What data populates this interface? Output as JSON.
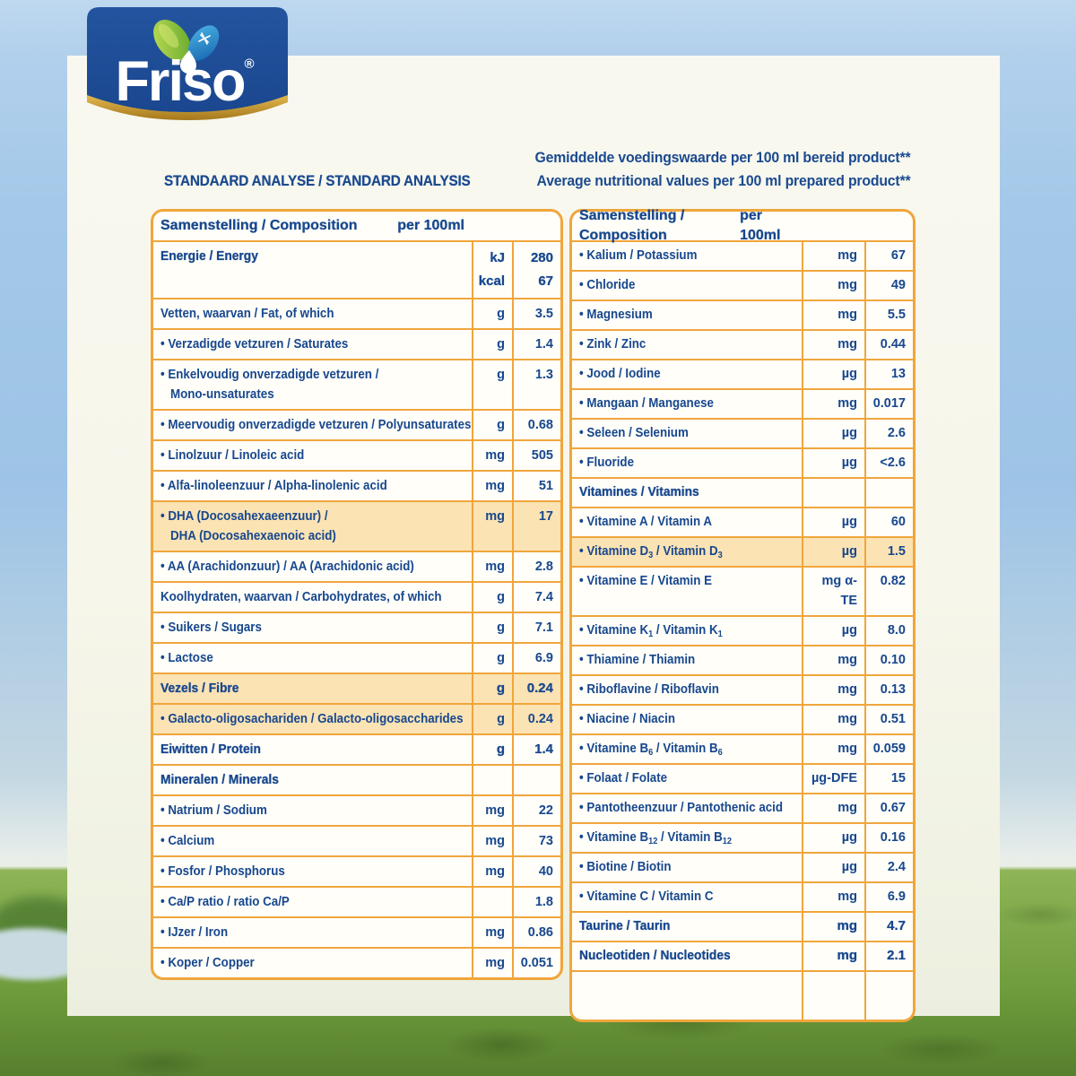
{
  "brand": {
    "name": "Friso",
    "registered": "®"
  },
  "icons": {
    "logo_mark": "leaf-drop-icon",
    "snowflake": "snowflake-icon",
    "milk_drop": "milk-drop-icon"
  },
  "colors": {
    "table_border": "#f0a63c",
    "row_highlight": "#fbe3b4",
    "text_navy": "#17478e",
    "logo_blue": "#1d4e9e",
    "logo_gold": "#c9992f",
    "sky": "#9dc3e6",
    "grass": "#6f9c3c"
  },
  "header": {
    "title": "STANDAARD ANALYSE / STANDARD ANALYSIS",
    "note_line1": "Gemiddelde voedingswaarde per 100 ml bereid product**",
    "note_line2": "Average nutritional values per 100 ml prepared product**"
  },
  "tables": [
    {
      "header": {
        "name": "Samenstelling / Composition",
        "per": "per 100ml"
      },
      "rows": [
        {
          "name": "Energie / Energy",
          "bold": true,
          "units": [
            "kJ",
            "kcal"
          ],
          "values": [
            "280",
            "67"
          ]
        },
        {
          "name": "**Vetten**, waarvan / **Fat**, of which",
          "unit": "g",
          "value": "3.5"
        },
        {
          "name": "• Verzadigde vetzuren / Saturates",
          "unit": "g",
          "value": "1.4"
        },
        {
          "name": "• Enkelvoudig onverzadigde vetzuren /",
          "name2": "Mono-unsaturates",
          "unit": "g",
          "value": "1.3"
        },
        {
          "name": "• Meervoudig onverzadigde vetzuren / Polyunsaturates",
          "unit": "g",
          "value": "0.68"
        },
        {
          "name": "• Linolzuur / Linoleic acid",
          "unit": "mg",
          "value": "505"
        },
        {
          "name": "• Alfa-linoleenzuur / Alpha-linolenic acid",
          "unit": "mg",
          "value": "51"
        },
        {
          "name": "• DHA (Docosahexaeenzuur) /",
          "name2": "DHA (Docosahexaenoic acid)",
          "unit": "mg",
          "value": "17",
          "hl": true
        },
        {
          "name": "• AA (Arachidonzuur) / AA (Arachidonic acid)",
          "unit": "mg",
          "value": "2.8"
        },
        {
          "name": "**Koolhydraten**, waarvan / **Carbohydrates**, of which",
          "unit": "g",
          "value": "7.4"
        },
        {
          "name": "• Suikers / Sugars",
          "unit": "g",
          "value": "7.1"
        },
        {
          "name": "• Lactose",
          "unit": "g",
          "value": "6.9"
        },
        {
          "name": "Vezels / Fibre",
          "bold": true,
          "hl": true,
          "unit": "g",
          "value": "0.24"
        },
        {
          "name": "• Galacto-oligosachariden / Galacto-oligosaccharides",
          "hl": true,
          "unit": "g",
          "value": "0.24"
        },
        {
          "name": "Eiwitten / Protein",
          "bold": true,
          "unit": "g",
          "value": "1.4"
        },
        {
          "name": "Mineralen / Minerals",
          "bold": true,
          "unit": "",
          "value": ""
        },
        {
          "name": "• Natrium / Sodium",
          "unit": "mg",
          "value": "22"
        },
        {
          "name": "• Calcium",
          "unit": "mg",
          "value": "73"
        },
        {
          "name": "• Fosfor / Phosphorus",
          "unit": "mg",
          "value": "40"
        },
        {
          "name": "• Ca/P ratio / ratio Ca/P",
          "unit": "",
          "value": "1.8"
        },
        {
          "name": "• IJzer / Iron",
          "unit": "mg",
          "value": "0.86"
        },
        {
          "name": "• Koper / Copper",
          "unit": "mg",
          "value": "0.051"
        }
      ]
    },
    {
      "header": {
        "name": "Samenstelling / Composition",
        "per": "per 100ml"
      },
      "rows": [
        {
          "name": "• Kalium / Potassium",
          "unit": "mg",
          "value": "67"
        },
        {
          "name": "• Chloride",
          "unit": "mg",
          "value": "49"
        },
        {
          "name": "• Magnesium",
          "unit": "mg",
          "value": "5.5"
        },
        {
          "name": "• Zink / Zinc",
          "unit": "mg",
          "value": "0.44"
        },
        {
          "name": "• Jood / Iodine",
          "unit": "µg",
          "value": "13"
        },
        {
          "name": "• Mangaan / Manganese",
          "unit": "mg",
          "value": "0.017"
        },
        {
          "name": "• Seleen / Selenium",
          "unit": "µg",
          "value": "2.6"
        },
        {
          "name": "• Fluoride",
          "unit": "µg",
          "value": "<2.6"
        },
        {
          "name": "Vitamines / Vitamins",
          "bold": true,
          "unit": "",
          "value": ""
        },
        {
          "name": "• Vitamine A / Vitamin A",
          "unit": "µg",
          "value": "60"
        },
        {
          "name": "• Vitamine D~3~ / Vitamin D~3~",
          "unit": "µg",
          "value": "1.5",
          "hl": true
        },
        {
          "name": "• Vitamine E / Vitamin E",
          "unit": "mg α-TE",
          "value": "0.82"
        },
        {
          "name": "• Vitamine K~1~ / Vitamin K~1~",
          "unit": "µg",
          "value": "8.0"
        },
        {
          "name": "• Thiamine / Thiamin",
          "unit": "mg",
          "value": "0.10"
        },
        {
          "name": "• Riboflavine / Riboflavin",
          "unit": "mg",
          "value": "0.13"
        },
        {
          "name": "• Niacine / Niacin",
          "unit": "mg",
          "value": "0.51"
        },
        {
          "name": "• Vitamine B~6~ / Vitamin B~6~",
          "unit": "mg",
          "value": "0.059"
        },
        {
          "name": "• Folaat / Folate",
          "unit": "µg-DFE",
          "value": "15"
        },
        {
          "name": "• Pantotheenzuur / Pantothenic acid",
          "unit": "mg",
          "value": "0.67"
        },
        {
          "name": "• Vitamine B~12~ / Vitamin B~12~",
          "unit": "µg",
          "value": "0.16"
        },
        {
          "name": "• Biotine / Biotin",
          "unit": "µg",
          "value": "2.4"
        },
        {
          "name": "• Vitamine C / Vitamin C",
          "unit": "mg",
          "value": "6.9"
        },
        {
          "name": "Taurine / Taurin",
          "bold": true,
          "unit": "mg",
          "value": "4.7"
        },
        {
          "name": "Nucleotiden / Nucleotides",
          "bold": true,
          "unit": "mg",
          "value": "2.1"
        },
        {
          "name": "",
          "unit": "",
          "value": "",
          "empty": true
        }
      ]
    }
  ]
}
